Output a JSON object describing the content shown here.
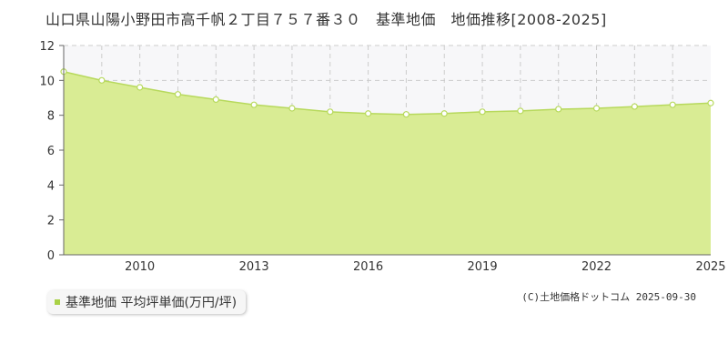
{
  "title": "山口県山陽小野田市高千帆２丁目７５７番３０　基準地価　地価推移[2008-2025]",
  "legend": {
    "label": "基準地価 平均坪単価(万円/坪)"
  },
  "copyright": "(C)土地価格ドットコム 2025-09-30",
  "colors": {
    "fill": "#d9ec94",
    "line": "#b7d95c",
    "marker_fill": "#ffffff",
    "grid": "#cccccc",
    "upper_band": "#f7f7f9"
  },
  "chart_data": {
    "type": "area",
    "x": [
      2008,
      2009,
      2010,
      2011,
      2012,
      2013,
      2014,
      2015,
      2016,
      2017,
      2018,
      2019,
      2020,
      2021,
      2022,
      2023,
      2024,
      2025
    ],
    "series": [
      {
        "name": "基準地価 平均坪単価(万円/坪)",
        "values": [
          10.5,
          10.0,
          9.6,
          9.2,
          8.9,
          8.6,
          8.4,
          8.2,
          8.1,
          8.05,
          8.1,
          8.2,
          8.25,
          8.35,
          8.4,
          8.5,
          8.6,
          8.7
        ]
      }
    ],
    "xticks": [
      2010,
      2013,
      2016,
      2019,
      2022,
      2025
    ],
    "xlim": [
      2008,
      2025
    ],
    "yticks": [
      0,
      2,
      4,
      6,
      8,
      10,
      12
    ],
    "ylim": [
      0,
      12
    ],
    "grid": true
  }
}
